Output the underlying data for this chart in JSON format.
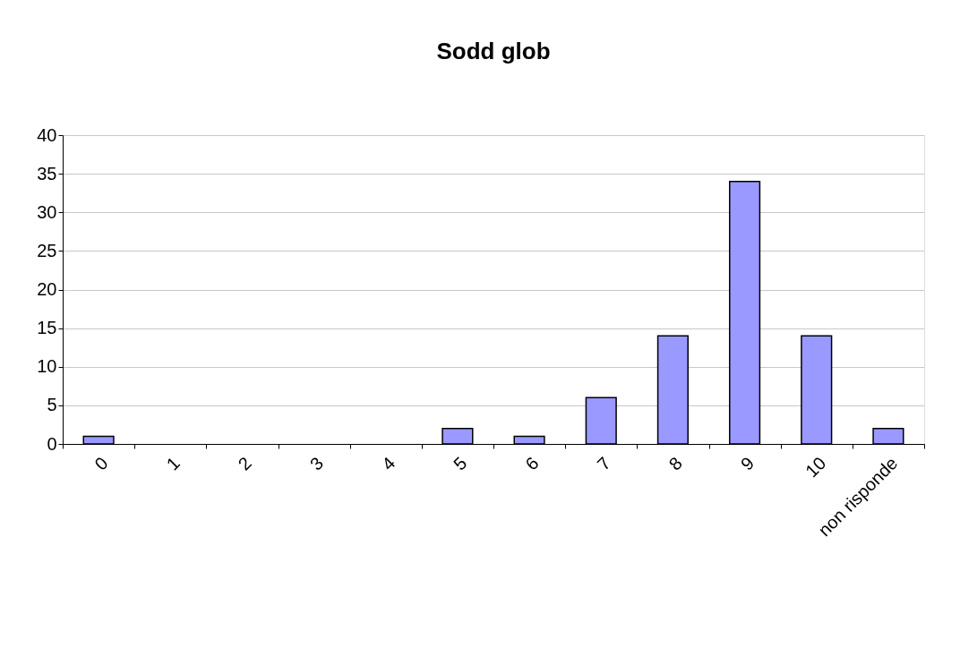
{
  "chart_data": {
    "type": "bar",
    "title": "Sodd glob",
    "categories": [
      "0",
      "1",
      "2",
      "3",
      "4",
      "5",
      "6",
      "7",
      "8",
      "9",
      "10",
      "non risponde"
    ],
    "values": [
      1,
      0,
      0,
      0,
      0,
      2,
      1,
      6,
      14,
      34,
      14,
      2
    ],
    "color": "#9999ff",
    "ylim": [
      0,
      40
    ],
    "yticks": [
      0,
      5,
      10,
      15,
      20,
      25,
      30,
      35,
      40
    ],
    "grid": "y"
  }
}
